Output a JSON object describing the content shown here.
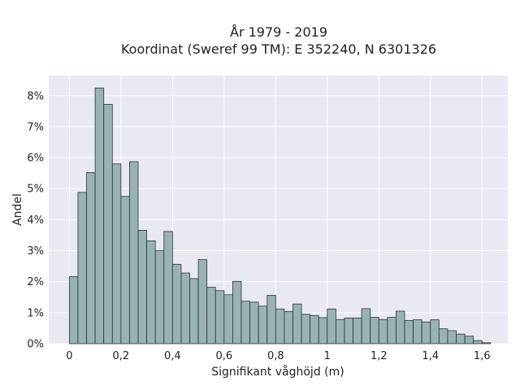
{
  "chart_data": {
    "type": "bar",
    "title": [
      "År 1979 - 2019",
      "Koordinat (Sweref 99 TM): E 352240, N 6301326"
    ],
    "xlabel": "Signifikant våghöjd (m)",
    "ylabel": "Andel",
    "xlim": [
      -0.08,
      1.7
    ],
    "ylim": [
      0,
      0.0865
    ],
    "grid": true,
    "x_ticks": [
      0,
      0.2,
      0.4,
      0.6,
      0.8,
      1.0,
      1.2,
      1.4,
      1.6
    ],
    "x_tick_labels": [
      "0",
      "0,2",
      "0,4",
      "0,6",
      "0,8",
      "1",
      "1,2",
      "1,4",
      "1,6"
    ],
    "y_ticks": [
      0,
      0.01,
      0.02,
      0.03,
      0.04,
      0.05,
      0.06,
      0.07,
      0.08
    ],
    "y_tick_labels": [
      "0%",
      "1%",
      "2%",
      "3%",
      "4%",
      "5%",
      "6%",
      "7%",
      "8%"
    ],
    "bin_width": 0.0333,
    "bins_start": [
      0.0,
      0.0333,
      0.0667,
      0.1,
      0.1333,
      0.1667,
      0.2,
      0.2333,
      0.2667,
      0.3,
      0.3333,
      0.3667,
      0.4,
      0.4333,
      0.4667,
      0.5,
      0.5333,
      0.5667,
      0.6,
      0.6333,
      0.6667,
      0.7,
      0.7333,
      0.7667,
      0.8,
      0.8333,
      0.8667,
      0.9,
      0.9333,
      0.9667,
      1.0,
      1.0333,
      1.0667,
      1.1,
      1.1333,
      1.1667,
      1.2,
      1.2333,
      1.2667,
      1.3,
      1.3333,
      1.3667,
      1.4,
      1.4333,
      1.4667,
      1.5,
      1.5333,
      1.5667,
      1.6
    ],
    "values": [
      0.0216,
      0.0488,
      0.0552,
      0.0825,
      0.0772,
      0.058,
      0.0475,
      0.0587,
      0.0366,
      0.0332,
      0.03,
      0.0362,
      0.0256,
      0.0228,
      0.021,
      0.0271,
      0.0182,
      0.0171,
      0.0158,
      0.0201,
      0.0137,
      0.0134,
      0.0121,
      0.0156,
      0.0112,
      0.0104,
      0.0128,
      0.0095,
      0.0091,
      0.0084,
      0.0112,
      0.0078,
      0.0083,
      0.0083,
      0.0113,
      0.0085,
      0.0078,
      0.0085,
      0.0105,
      0.0075,
      0.0077,
      0.007,
      0.0077,
      0.0048,
      0.0042,
      0.0031,
      0.0024,
      0.001,
      0.0003
    ],
    "colors": {
      "bar_fill": "#99b3b3",
      "bar_edge": "#2a3333",
      "plot_bg": "#e9e9f1",
      "grid": "#ffffff"
    }
  }
}
